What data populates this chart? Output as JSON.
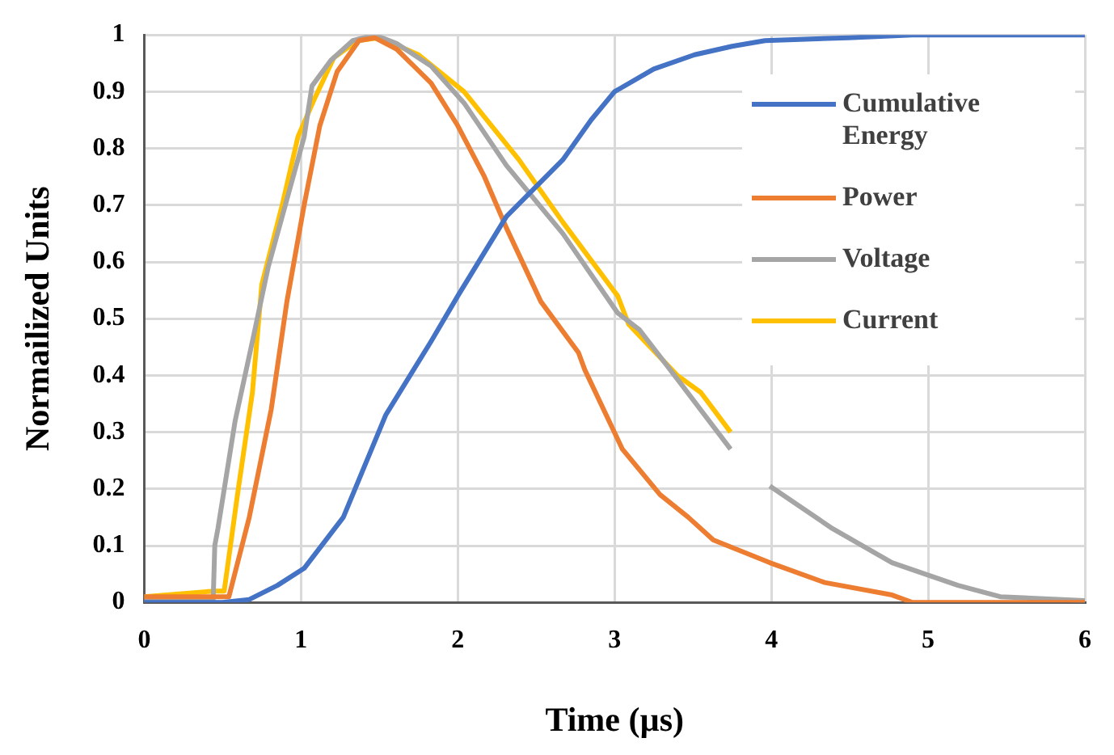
{
  "chart_data": {
    "type": "line",
    "xlabel": "Time (µs)",
    "ylabel": "Normailized Units",
    "xlim": [
      0,
      6
    ],
    "xticks": [
      0,
      1,
      2,
      3,
      4,
      5,
      6
    ],
    "ylim": [
      0,
      1
    ],
    "yticks": [
      0,
      0.1,
      0.2,
      0.3,
      0.4,
      0.5,
      0.6,
      0.7,
      0.8,
      0.9,
      1
    ],
    "grid": true,
    "legend": "right",
    "marker": "none",
    "line_style": "solid",
    "series": [
      {
        "name": "Cumulative Energy",
        "color": "#4472c4",
        "x": [
          0,
          0.5,
          0.67,
          0.85,
          1.02,
          1.27,
          1.54,
          1.83,
          2.0,
          2.31,
          2.67,
          2.85,
          3.0,
          3.25,
          3.51,
          3.75,
          3.96,
          4.49,
          4.9,
          5.5,
          6
        ],
        "values": [
          0,
          0,
          0.005,
          0.03,
          0.06,
          0.15,
          0.33,
          0.46,
          0.54,
          0.68,
          0.78,
          0.85,
          0.9,
          0.94,
          0.965,
          0.98,
          0.99,
          0.995,
          1,
          1,
          1
        ]
      },
      {
        "name": "Power",
        "color": "#ed7d31",
        "x": [
          0,
          0.5,
          0.54,
          0.67,
          0.81,
          0.91,
          1.02,
          1.12,
          1.23,
          1.37,
          1.47,
          1.61,
          1.83,
          2.0,
          2.17,
          2.31,
          2.53,
          2.77,
          2.81,
          3.05,
          3.29,
          3.47,
          3.63,
          3.99,
          4.34,
          4.77,
          4.9,
          6
        ],
        "values": [
          0.01,
          0.01,
          0.01,
          0.15,
          0.34,
          0.53,
          0.7,
          0.84,
          0.935,
          0.99,
          0.995,
          0.975,
          0.915,
          0.84,
          0.75,
          0.66,
          0.53,
          0.44,
          0.41,
          0.27,
          0.19,
          0.15,
          0.11,
          0.07,
          0.035,
          0.013,
          0,
          0
        ]
      },
      {
        "name": "Voltage",
        "color": "#a5a5a5",
        "x": [
          0,
          0.44,
          0.45,
          0.47,
          0.58,
          0.69,
          0.79,
          0.91,
          1.02,
          1.07,
          1.19,
          1.33,
          1.47,
          1.61,
          1.83,
          2.04,
          2.31,
          2.67,
          3.02,
          3.16,
          3.41,
          3.74,
          3.85,
          3.99,
          4.39,
          4.77,
          5.19,
          5.46,
          6
        ],
        "values": [
          0.005,
          0.005,
          0.1,
          0.13,
          0.32,
          0.46,
          0.59,
          0.71,
          0.82,
          0.91,
          0.955,
          0.99,
          1,
          0.985,
          0.945,
          0.88,
          0.77,
          0.65,
          0.51,
          0.48,
          0.39,
          0.27,
          null,
          0.205,
          0.13,
          0.07,
          0.03,
          0.01,
          0.003
        ]
      },
      {
        "name": "Current",
        "color": "#ffc000",
        "x": [
          0,
          0.45,
          0.51,
          0.6,
          0.69,
          0.75,
          0.88,
          0.98,
          1.09,
          1.21,
          1.36,
          1.5,
          1.75,
          2.04,
          2.39,
          2.67,
          3.02,
          3.09,
          3.4,
          3.55,
          3.74
        ],
        "values": [
          0.01,
          0.02,
          0.02,
          0.2,
          0.37,
          0.56,
          0.7,
          0.82,
          0.89,
          0.96,
          0.99,
          0.995,
          0.965,
          0.9,
          0.78,
          0.67,
          0.54,
          0.49,
          0.4,
          0.37,
          0.3
        ]
      }
    ]
  }
}
